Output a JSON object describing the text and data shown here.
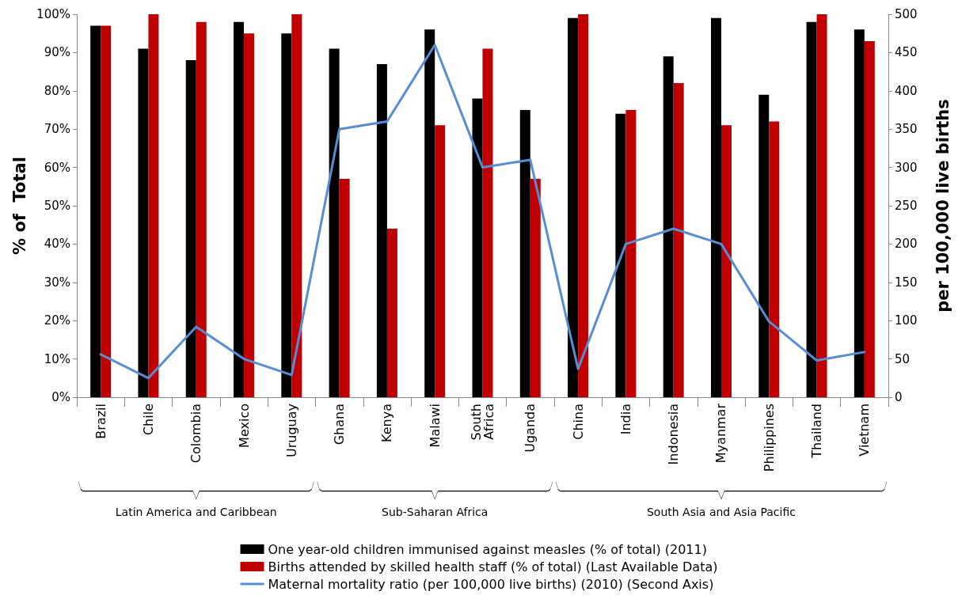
{
  "chart_data": {
    "type": "bar",
    "categories": [
      "Brazil",
      "Chile",
      "Colombia",
      "Mexico",
      "Uruguay",
      "Ghana",
      "Kenya",
      "Malawi",
      "South Africa",
      "Uganda",
      "China",
      "India",
      "Indonesia",
      "Myanmar",
      "Philippines",
      "Thailand",
      "Vietnam"
    ],
    "series": [
      {
        "name": "One year-old children immunised against measles (% of total) (2011)",
        "color": "#000000",
        "values": [
          97,
          91,
          88,
          98,
          95,
          91,
          87,
          96,
          78,
          75,
          99,
          74,
          89,
          99,
          79,
          98,
          96
        ]
      },
      {
        "name": "Births attended by skilled health staff (% of total) (Last Available Data)",
        "color": "#c00000",
        "values": [
          97,
          100,
          98,
          95,
          100,
          57,
          44,
          71,
          91,
          57,
          100,
          75,
          82,
          71,
          72,
          100,
          93
        ]
      },
      {
        "name": "Maternal mortality ratio (per 100,000 live births) (2010) (Second Axis)",
        "color": "#558ed5",
        "type": "line",
        "axis": "y2",
        "values": [
          56,
          25,
          92,
          50,
          29,
          350,
          360,
          460,
          300,
          310,
          37,
          200,
          220,
          200,
          99,
          48,
          59
        ]
      }
    ],
    "ylabel": "% of  Total",
    "y2label": "per 100,000 live births",
    "ylim": [
      0,
      100
    ],
    "yticks": [
      {
        "value": 0,
        "label": "0%"
      },
      {
        "value": 10,
        "label": "10%"
      },
      {
        "value": 20,
        "label": "20%"
      },
      {
        "value": 30,
        "label": "30%"
      },
      {
        "value": 40,
        "label": "40%"
      },
      {
        "value": 50,
        "label": "50%"
      },
      {
        "value": 60,
        "label": "60%"
      },
      {
        "value": 70,
        "label": "70%"
      },
      {
        "value": 80,
        "label": "80%"
      },
      {
        "value": 90,
        "label": "90%"
      },
      {
        "value": 100,
        "label": "100%"
      }
    ],
    "y2lim": [
      0,
      500
    ],
    "y2ticks": [
      0,
      50,
      100,
      150,
      200,
      250,
      300,
      350,
      400,
      450,
      500
    ],
    "annotations": [
      "Latin America and Caribbean",
      "Sub-Saharan Africa",
      "South Asia and Asia Pacific"
    ],
    "grid": false,
    "legend": "bottom",
    "marker": "none",
    "line_style": "solid"
  }
}
